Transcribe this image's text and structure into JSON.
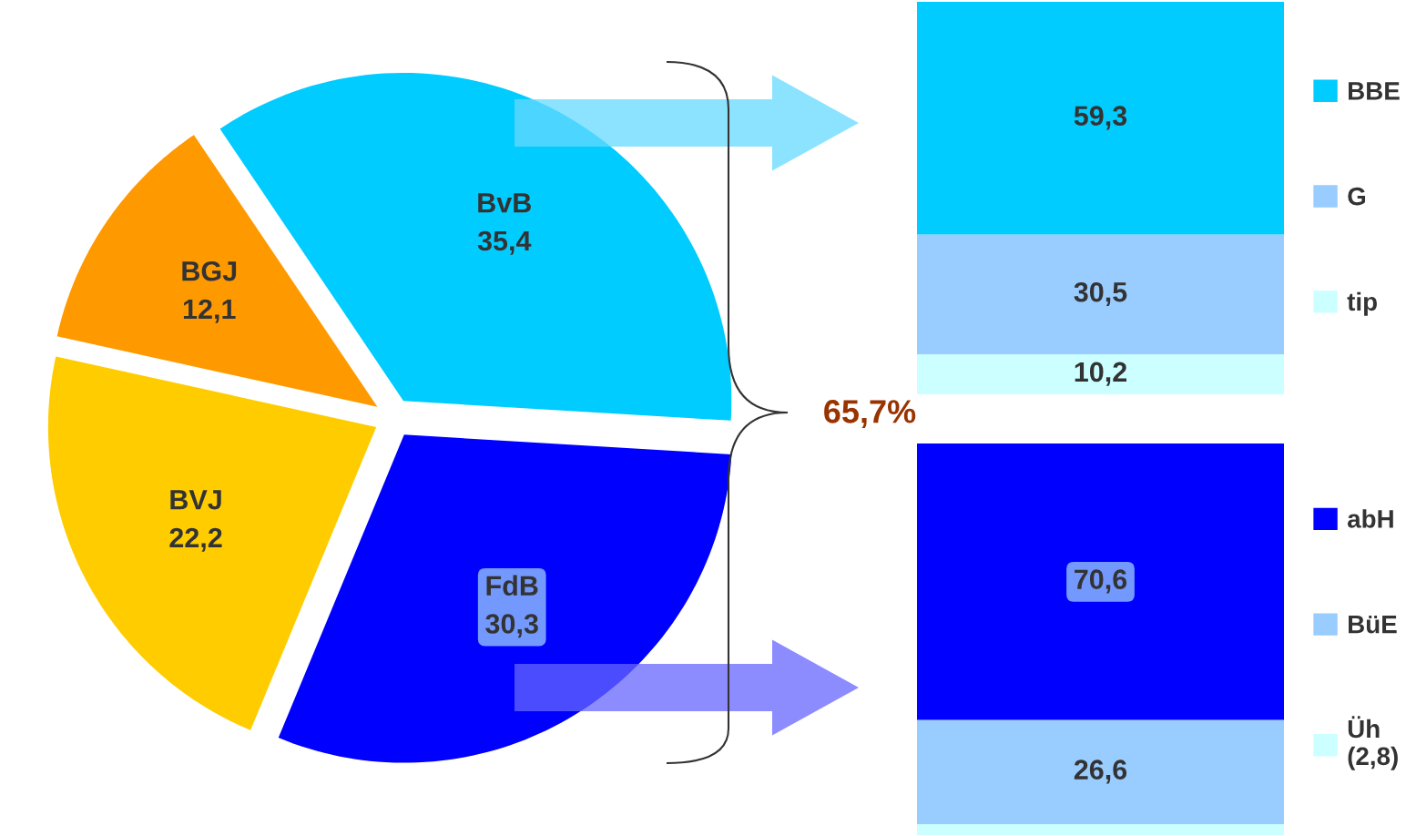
{
  "chart_data": [
    {
      "type": "pie",
      "categories": [
        "BvB",
        "FdB",
        "BVJ",
        "BGJ"
      ],
      "values": [
        35.4,
        30.3,
        22.2,
        12.1
      ],
      "value_labels": [
        "35,4",
        "30,3",
        "22,2",
        "12,1"
      ],
      "colors": [
        "#00ccff",
        "#0000ff",
        "#ffcc00",
        "#ff9900"
      ],
      "annotations": [
        "65,7%"
      ]
    },
    {
      "type": "bar",
      "stacked": true,
      "categories": [
        null
      ],
      "legend": "right",
      "series": [
        {
          "name": "tip",
          "color": "#ccffff",
          "values": [
            10.2
          ],
          "value_labels": [
            "10,2"
          ]
        },
        {
          "name": "G",
          "color": "#99ccff",
          "values": [
            30.5
          ],
          "value_labels": [
            "30,5"
          ]
        },
        {
          "name": "BBE",
          "color": "#00ccff",
          "values": [
            59.3
          ],
          "value_labels": [
            "59,3"
          ]
        }
      ]
    },
    {
      "type": "bar",
      "stacked": true,
      "categories": [
        null
      ],
      "legend": "right",
      "series": [
        {
          "name": "Üh\n(2,8)",
          "color": "#ccffff",
          "values": [
            2.8
          ],
          "value_labels": [
            null
          ]
        },
        {
          "name": "BüE",
          "color": "#99ccff",
          "values": [
            26.6
          ],
          "value_labels": [
            "26,6"
          ]
        },
        {
          "name": "abH",
          "color": "#0000ff",
          "values": [
            70.6
          ],
          "value_labels": [
            "70,6"
          ]
        }
      ]
    }
  ]
}
